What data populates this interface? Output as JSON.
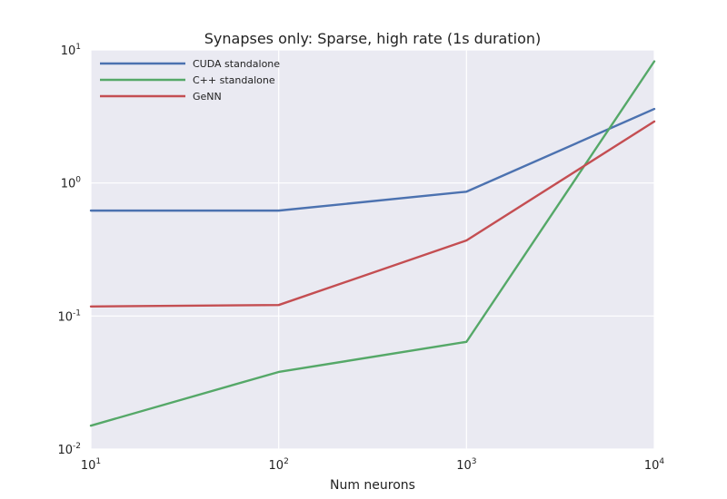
{
  "chart_data": {
    "type": "line",
    "title": "Synapses only: Sparse, high rate (1s duration)",
    "xlabel": "Num neurons",
    "ylabel": "",
    "xscale": "log",
    "yscale": "log",
    "xlim": [
      10,
      10000
    ],
    "ylim": [
      0.01,
      10
    ],
    "grid": true,
    "legend_position": "top-left",
    "x_ticks": [
      {
        "value": 10,
        "base": "10",
        "exp": "1"
      },
      {
        "value": 100,
        "base": "10",
        "exp": "2"
      },
      {
        "value": 1000,
        "base": "10",
        "exp": "3"
      },
      {
        "value": 10000,
        "base": "10",
        "exp": "4"
      }
    ],
    "y_ticks": [
      {
        "value": 10,
        "base": "10",
        "exp": "1"
      },
      {
        "value": 1,
        "base": "10",
        "exp": "0"
      },
      {
        "value": 0.1,
        "base": "10",
        "exp": "-1"
      },
      {
        "value": 0.01,
        "base": "10",
        "exp": "-2"
      }
    ],
    "series": [
      {
        "name": "CUDA standalone",
        "color": "#4c72b0",
        "x": [
          10,
          100,
          1000,
          10000
        ],
        "y": [
          0.62,
          0.62,
          0.86,
          3.6
        ]
      },
      {
        "name": "C++ standalone",
        "color": "#55a868",
        "x": [
          10,
          100,
          1000,
          10000
        ],
        "y": [
          0.015,
          0.038,
          0.064,
          8.2
        ]
      },
      {
        "name": "GeNN",
        "color": "#c44e52",
        "x": [
          10,
          100,
          1000,
          10000
        ],
        "y": [
          0.118,
          0.121,
          0.37,
          2.9
        ]
      }
    ],
    "colors": {
      "plot_background": "#eaeaf2",
      "grid": "#ffffff"
    }
  }
}
